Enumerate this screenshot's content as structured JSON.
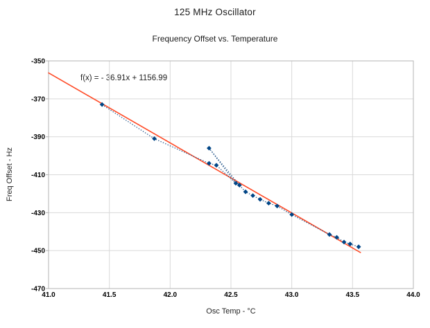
{
  "chart_data": {
    "type": "scatter",
    "title": "125 MHz Oscillator",
    "subtitle": "Frequency Offset vs. Temperature",
    "xlabel": "Osc Temp - °C",
    "ylabel": "Freq Offset - Hz",
    "annotation": "f(x) =  - 36.91x + 1156.99",
    "xlim": [
      41.0,
      44.0
    ],
    "ylim": [
      -470,
      -350
    ],
    "x_tick_labels": [
      "41.0",
      "41.5",
      "42.0",
      "42.5",
      "43.0",
      "43.5",
      "44.0"
    ],
    "y_tick_labels": [
      "-350",
      "-370",
      "-390",
      "-410",
      "-430",
      "-450",
      "-470"
    ],
    "grid": true,
    "legend": "none",
    "grid_color": "#d9d9d9",
    "frame_color": "#b3b3b3",
    "text_color": "#1a1a1a",
    "series": [
      {
        "name": "measured-offset",
        "type": "scatter",
        "marker": "diamond",
        "marker_color": "#004586",
        "connector": "dotted",
        "connector_color": "#2d5d8f",
        "points": [
          [
            41.44,
            -373
          ],
          [
            41.87,
            -391
          ],
          [
            42.32,
            -404
          ],
          [
            42.38,
            -405
          ],
          [
            42.54,
            -414.5
          ],
          [
            42.32,
            -396
          ],
          [
            42.57,
            -415.5
          ],
          [
            42.62,
            -419
          ],
          [
            42.68,
            -421
          ],
          [
            42.74,
            -423
          ],
          [
            42.81,
            -425
          ],
          [
            42.88,
            -426.5
          ],
          [
            43.0,
            -431
          ],
          [
            43.31,
            -441.5
          ],
          [
            43.37,
            -443
          ],
          [
            43.43,
            -445.5
          ],
          [
            43.48,
            -446.5
          ],
          [
            43.55,
            -448
          ]
        ]
      },
      {
        "name": "linear-trend",
        "type": "line",
        "color": "#ff4a26",
        "slope": -36.91,
        "intercept": 1156.99,
        "x_start": 41.0,
        "x_end": 43.565
      }
    ]
  }
}
